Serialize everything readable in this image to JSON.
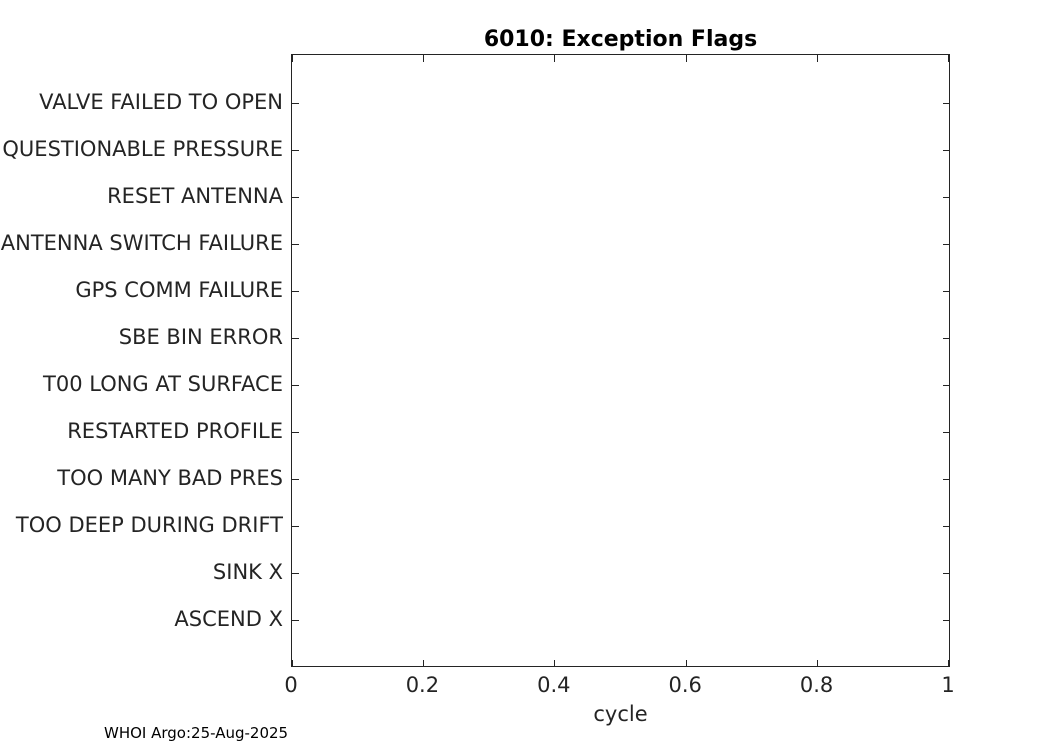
{
  "chart_data": {
    "type": "scatter",
    "title": "6010: Exception Flags",
    "xlabel": "cycle",
    "ylabel": "",
    "xlim": [
      0,
      1
    ],
    "x_ticks": [
      "0",
      "0.2",
      "0.4",
      "0.6",
      "0.8",
      "1"
    ],
    "y_categories": [
      "VALVE FAILED TO OPEN",
      "QUESTIONABLE PRESSURE",
      "RESET ANTENNA",
      "ANTENNA SWITCH FAILURE",
      "GPS COMM FAILURE",
      "SBE BIN ERROR",
      "T00 LONG AT SURFACE",
      "RESTARTED PROFILE",
      "TOO MANY BAD PRES",
      "TOO DEEP DURING DRIFT",
      "SINK X",
      "ASCEND X"
    ],
    "category_order": "top-to-bottom",
    "series": [],
    "points": [],
    "grid": false,
    "legend": false,
    "box": true,
    "tick_direction": "in",
    "plot_is_empty": true
  },
  "annotations": {
    "credit": "WHOI Argo:25-Aug-2025"
  },
  "colors": {
    "background": "#ffffff",
    "axis": "#242424",
    "tick_label": "#242424",
    "title": "#000000",
    "credit": "#000000"
  }
}
